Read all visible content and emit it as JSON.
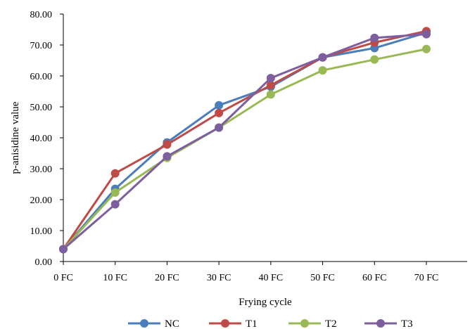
{
  "chart_data": {
    "type": "line",
    "title": "",
    "xlabel": "Frying cycle",
    "ylabel": "p-anisidine value",
    "categories": [
      "0 FC",
      "10 FC",
      "20 FC",
      "30 FC",
      "40 FC",
      "50 FC",
      "60 FC",
      "70 FC"
    ],
    "ylim": [
      0,
      80
    ],
    "yticks": [
      "0.00",
      "10.00",
      "20.00",
      "30.00",
      "40.00",
      "50.00",
      "60.00",
      "70.00",
      "80.00"
    ],
    "grid": false,
    "legend_position": "bottom",
    "series": [
      {
        "name": "NC",
        "color": "#4a7ebb",
        "values": [
          4.0,
          23.5,
          38.5,
          50.5,
          56.5,
          66.0,
          69.0,
          74.0
        ]
      },
      {
        "name": "T1",
        "color": "#be4b48",
        "values": [
          4.0,
          28.5,
          37.8,
          48.0,
          57.0,
          66.0,
          70.8,
          74.5
        ]
      },
      {
        "name": "T2",
        "color": "#98b954",
        "values": [
          4.0,
          22.3,
          33.5,
          43.3,
          54.0,
          61.8,
          65.3,
          68.7
        ]
      },
      {
        "name": "T3",
        "color": "#7d5fa0",
        "values": [
          4.0,
          18.5,
          34.0,
          43.3,
          59.3,
          66.0,
          72.3,
          73.5
        ]
      }
    ]
  }
}
